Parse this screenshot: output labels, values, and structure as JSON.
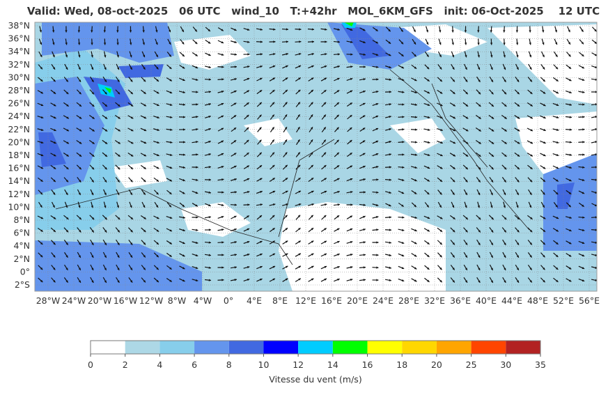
{
  "header": {
    "title": "Valid: Wed, 08-oct-2025   06 UTC   wind_10   T:+42hr   MOL_6KM_GFS   init: 06-Oct-2025    12 UTC"
  },
  "map": {
    "lat_labels": [
      "38°N",
      "36°N",
      "34°N",
      "32°N",
      "30°N",
      "28°N",
      "26°N",
      "24°N",
      "22°N",
      "20°N",
      "18°N",
      "16°N",
      "14°N",
      "12°N",
      "10°N",
      "8°N",
      "6°N",
      "4°N",
      "2°N",
      "0°",
      "2°S"
    ],
    "lon_labels": [
      "28°W",
      "24°W",
      "20°W",
      "16°W",
      "12°W",
      "8°W",
      "4°W",
      "0°",
      "4°E",
      "8°E",
      "12°E",
      "16°E",
      "20°E",
      "24°E",
      "28°E",
      "32°E",
      "36°E",
      "40°E",
      "44°E",
      "48°E",
      "52°E",
      "56°E"
    ]
  },
  "colorbar": {
    "ticks": [
      0,
      2,
      4,
      6,
      8,
      10,
      12,
      14,
      16,
      18,
      20,
      25,
      30,
      35
    ],
    "colors": [
      "#ffffff",
      "#add8e6",
      "#87ceeb",
      "#6495ed",
      "#4169e1",
      "#0000ff",
      "#00ccff",
      "#00ff00",
      "#ffff00",
      "#ffd700",
      "#ffa500",
      "#ff4500",
      "#b22222"
    ],
    "label": "Vitesse du vent (m/s)"
  }
}
